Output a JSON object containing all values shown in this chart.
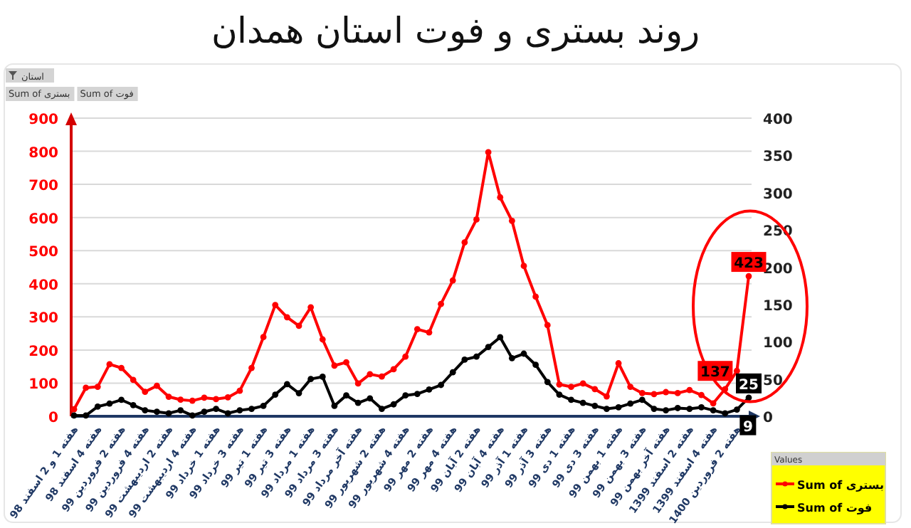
{
  "chart_data": {
    "type": "line",
    "title": "روند بستری و فوت استان همدان",
    "legend_title": "Values",
    "annotations": [
      "استان",
      "Sum of بستری",
      "Sum of فوت"
    ],
    "categories": [
      "هفته 1 و 2 اسفند 98",
      null,
      "هفته 4 اسفند 98",
      null,
      "هفته 2 فروردین 99",
      null,
      "هفته 4 فروردین 99",
      null,
      "هفته 2 اردیبهشت 99",
      null,
      "هفته 4 اردیبهشت 99",
      null,
      "هفته 1 خرداد 99",
      null,
      "هفته 3 خرداد 99",
      null,
      "هفته 1 تیر 99",
      null,
      "هفته 3 تیر 99",
      null,
      "هفته 1 مرداد 99",
      null,
      "هفته 3 مرداد 99",
      null,
      "هفته آخر مرداد 99",
      null,
      "هفته 2 شهریور 99",
      null,
      "هفته 4 شهریور 99",
      null,
      "هفته 2 مهر 99",
      null,
      "هفته 4 مهر 99",
      null,
      "هفته 2 آبان 99",
      null,
      "هفته 4 آبان 99",
      null,
      "هفته 1 آذر 99",
      null,
      "هفته 3 آذر 99",
      null,
      "هفته 1 دی 99",
      null,
      "هفته 3 دی 99",
      null,
      "هفته 1 بهمن 99",
      null,
      "هفته 3 بهمن 99",
      null,
      "هفته آخر بهمن 99",
      null,
      "هفته 2 اسفند 1399",
      null,
      "هفته 4 اسفند 1399",
      null,
      "هفته 2 فروردین 1400",
      null
    ],
    "ylim": [
      0,
      900
    ],
    "yticks": [
      0,
      100,
      200,
      300,
      400,
      500,
      600,
      700,
      800,
      900
    ],
    "y2lim": [
      0,
      400
    ],
    "y2ticks": [
      0,
      50,
      100,
      150,
      200,
      250,
      300,
      350,
      400
    ],
    "grid": "y",
    "legend": "bottom right",
    "marker": "circle",
    "line_style": "solid",
    "series": [
      {
        "name": "Sum of بستری",
        "color": "#ff0000",
        "values": [
          21,
          86,
          89,
          157,
          146,
          110,
          74,
          92,
          59,
          50,
          47,
          56,
          52,
          57,
          77,
          146,
          239,
          336,
          299,
          273,
          329,
          232,
          153,
          163,
          99,
          127,
          120,
          142,
          180,
          263,
          253,
          339,
          410,
          525,
          594,
          797,
          661,
          590,
          454,
          361,
          275,
          96,
          89,
          99,
          82,
          60,
          160,
          89,
          70,
          67,
          73,
          70,
          79,
          64,
          39,
          82,
          137,
          423
        ],
        "value_labels": [
          null,
          null,
          null,
          null,
          null,
          null,
          null,
          null,
          null,
          null,
          null,
          null,
          null,
          null,
          null,
          null,
          null,
          null,
          null,
          null,
          null,
          null,
          null,
          null,
          null,
          null,
          null,
          null,
          null,
          null,
          null,
          null,
          null,
          null,
          null,
          null,
          null,
          null,
          null,
          null,
          null,
          null,
          null,
          null,
          null,
          null,
          null,
          null,
          null,
          null,
          null,
          null,
          null,
          null,
          null,
          null,
          "137",
          "423"
        ]
      },
      {
        "name": "Sum of فوت",
        "color": "#000000",
        "axis": "y2",
        "values": [
          1,
          1,
          13,
          17,
          22,
          15,
          8,
          6,
          4,
          8,
          1,
          6,
          10,
          4,
          8,
          10,
          14,
          29,
          43,
          31,
          50,
          53,
          14,
          28,
          18,
          24,
          10,
          16,
          28,
          30,
          36,
          42,
          59,
          76,
          80,
          93,
          106,
          78,
          84,
          69,
          46,
          29,
          22,
          18,
          14,
          10,
          12,
          17,
          22,
          10,
          8,
          11,
          10,
          12,
          8,
          4,
          9,
          25
        ],
        "value_labels": [
          null,
          null,
          null,
          null,
          null,
          null,
          null,
          null,
          null,
          null,
          null,
          null,
          null,
          null,
          null,
          null,
          null,
          null,
          null,
          null,
          null,
          null,
          null,
          null,
          null,
          null,
          null,
          null,
          null,
          null,
          null,
          null,
          null,
          null,
          null,
          null,
          null,
          null,
          null,
          null,
          null,
          null,
          null,
          null,
          null,
          null,
          null,
          null,
          null,
          null,
          null,
          null,
          null,
          null,
          null,
          null,
          "9",
          "25"
        ]
      }
    ]
  }
}
